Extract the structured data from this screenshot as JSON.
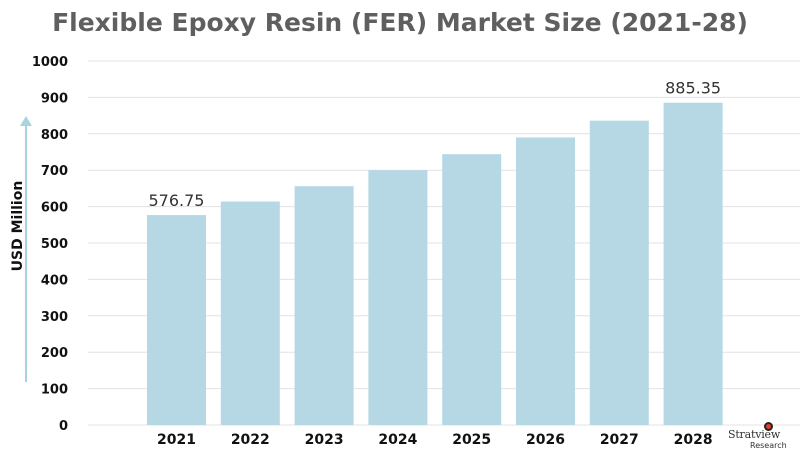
{
  "chart_data": {
    "type": "bar",
    "title": "Flexible Epoxy Resin (FER) Market Size (2021-28)",
    "ylabel": "USD Million",
    "xlabel": "",
    "categories": [
      "2021",
      "2022",
      "2023",
      "2024",
      "2025",
      "2026",
      "2027",
      "2028"
    ],
    "values": [
      576.75,
      614,
      656,
      700,
      744,
      790,
      836,
      885.35
    ],
    "data_labels": [
      {
        "category": "2021",
        "text": "576.75"
      },
      {
        "category": "2028",
        "text": "885.35"
      }
    ],
    "ylim": [
      0,
      1000
    ],
    "yticks": [
      0,
      100,
      200,
      300,
      400,
      500,
      600,
      700,
      800,
      900,
      1000
    ],
    "grid": true,
    "bar_color": "#b5d8e4"
  },
  "logo": {
    "name": "Stratview",
    "sub": "Research"
  }
}
